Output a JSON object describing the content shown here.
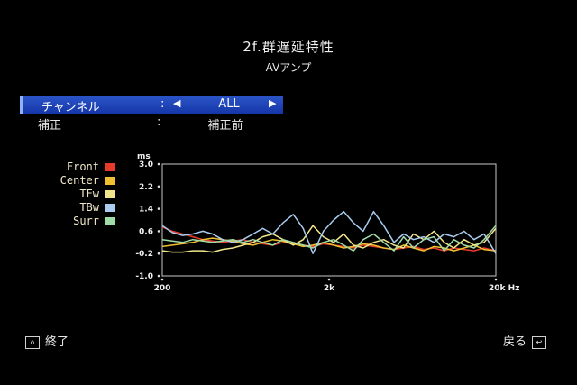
{
  "header": {
    "title": "2f.群遅延特性",
    "subtitle": "AVアンプ"
  },
  "settings": [
    {
      "label": "チャンネル",
      "value": "ALL",
      "selected": true
    },
    {
      "label": "補正",
      "value": "補正前",
      "selected": false
    }
  ],
  "footer": {
    "exit_label": "終了",
    "back_label": "戻る"
  },
  "chart_data": {
    "type": "line",
    "title": "",
    "xlabel": "",
    "ylabel": "ms",
    "x_scale": "log",
    "xlim": [
      200,
      20000
    ],
    "ylim": [
      -1.0,
      3.0
    ],
    "x_ticks": [
      "200",
      "2k",
      "20k Hz"
    ],
    "y_ticks": [
      "3.0",
      "2.2",
      "1.4",
      "0.6",
      "-0.2",
      "-1.0"
    ],
    "x": [
      200,
      230,
      265,
      305,
      350,
      400,
      460,
      530,
      610,
      700,
      800,
      920,
      1060,
      1220,
      1400,
      1600,
      1850,
      2130,
      2450,
      2800,
      3200,
      3700,
      4250,
      4900,
      5600,
      6400,
      7400,
      8500,
      9800,
      11200,
      12900,
      14800,
      17000,
      20000
    ],
    "series": [
      {
        "name": "Front",
        "color": "#e83a2a",
        "values": [
          0.75,
          0.6,
          0.5,
          0.4,
          0.3,
          0.25,
          0.2,
          0.25,
          0.3,
          0.2,
          0.15,
          0.1,
          0.2,
          0.15,
          0.1,
          0.05,
          0.15,
          0.1,
          0.05,
          0.0,
          0.1,
          0.05,
          0.0,
          -0.05,
          0.0,
          0.05,
          -0.05,
          0.0,
          -0.1,
          0.0,
          -0.05,
          -0.1,
          0.0,
          -0.1
        ]
      },
      {
        "name": "Center",
        "color": "#f0c030",
        "values": [
          0.05,
          0.1,
          0.15,
          0.2,
          0.3,
          0.35,
          0.3,
          0.25,
          0.15,
          0.1,
          0.2,
          0.3,
          0.25,
          0.15,
          0.05,
          0.1,
          0.2,
          0.1,
          0.0,
          0.05,
          0.15,
          0.1,
          0.0,
          -0.05,
          0.1,
          0.0,
          -0.1,
          0.05,
          0.0,
          -0.1,
          0.0,
          0.1,
          -0.05,
          -0.1
        ]
      },
      {
        "name": "TFw",
        "color": "#f2e68a",
        "values": [
          -0.1,
          -0.15,
          -0.15,
          -0.1,
          -0.1,
          -0.15,
          -0.05,
          0.0,
          0.1,
          0.2,
          0.4,
          0.5,
          0.3,
          0.1,
          0.3,
          0.8,
          0.4,
          0.2,
          0.5,
          0.1,
          0.0,
          0.2,
          0.3,
          0.1,
          0.0,
          0.5,
          0.3,
          0.6,
          0.2,
          0.0,
          0.3,
          0.1,
          0.2,
          0.7
        ]
      },
      {
        "name": "TBw",
        "color": "#a9ccf0",
        "values": [
          0.8,
          0.55,
          0.45,
          0.5,
          0.6,
          0.5,
          0.3,
          0.2,
          0.3,
          0.5,
          0.7,
          0.5,
          0.9,
          1.2,
          0.7,
          -0.2,
          0.6,
          1.0,
          1.3,
          0.9,
          0.6,
          1.3,
          0.8,
          0.2,
          0.5,
          0.3,
          0.4,
          0.2,
          0.5,
          0.4,
          0.6,
          0.3,
          0.5,
          -0.2
        ]
      },
      {
        "name": "Surr",
        "color": "#9fdca8",
        "values": [
          0.3,
          0.25,
          0.2,
          0.3,
          0.25,
          0.2,
          0.25,
          0.3,
          0.2,
          0.3,
          0.2,
          0.1,
          0.3,
          0.2,
          0.1,
          0.0,
          0.2,
          0.3,
          0.1,
          -0.1,
          0.3,
          0.5,
          0.2,
          -0.1,
          0.4,
          0.0,
          0.3,
          0.4,
          -0.1,
          0.3,
          0.1,
          0.0,
          0.3,
          0.8
        ]
      }
    ]
  }
}
